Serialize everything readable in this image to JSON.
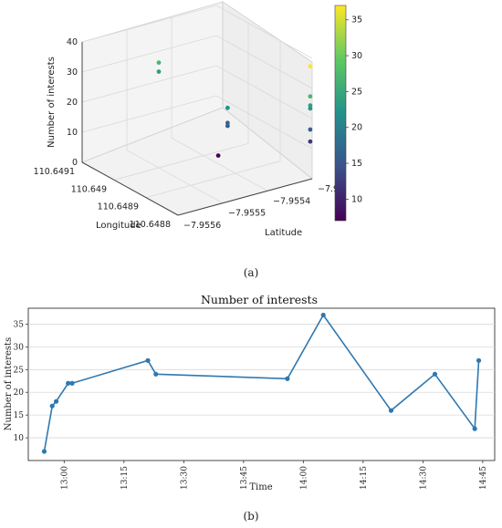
{
  "captions": {
    "a": "(a)",
    "b": "(b)"
  },
  "chart_data": [
    {
      "type": "scatter",
      "projection": "3d",
      "xlabel": "Latitude",
      "ylabel": "Longitude",
      "zlabel": "Number of interests",
      "x_ticks": [
        "−7.9556",
        "−7.9555",
        "−7.9554",
        "−7.95"
      ],
      "y_ticks": [
        "110.6488",
        "110.6489",
        "110.649",
        "110.6491"
      ],
      "z_ticks": [
        "0",
        "10",
        "20",
        "30",
        "40"
      ],
      "zlim": [
        0,
        40
      ],
      "colorbar": {
        "ticks": [
          "10",
          "15",
          "20",
          "25",
          "30",
          "35"
        ],
        "range": [
          7,
          37
        ],
        "colormap": "viridis"
      },
      "points": [
        {
          "lat_f": 0.55,
          "lon_f": 0.97,
          "z": 27
        },
        {
          "lat_f": 0.55,
          "lon_f": 0.97,
          "z": 24
        },
        {
          "lat_f": 0.62,
          "lon_f": 0.35,
          "z": 22
        },
        {
          "lat_f": 0.62,
          "lon_f": 0.35,
          "z": 17
        },
        {
          "lat_f": 0.62,
          "lon_f": 0.35,
          "z": 16
        },
        {
          "lat_f": 0.55,
          "lon_f": 0.35,
          "z": 7
        },
        {
          "lat_f": 1.0,
          "lon_f": 0.02,
          "z": 37
        },
        {
          "lat_f": 1.0,
          "lon_f": 0.02,
          "z": 27
        },
        {
          "lat_f": 1.0,
          "lon_f": 0.02,
          "z": 24
        },
        {
          "lat_f": 1.0,
          "lon_f": 0.02,
          "z": 23
        },
        {
          "lat_f": 1.0,
          "lon_f": 0.02,
          "z": 16
        },
        {
          "lat_f": 1.0,
          "lon_f": 0.02,
          "z": 12
        }
      ]
    },
    {
      "type": "line",
      "title": "Number of interests",
      "xlabel": "Time",
      "ylabel": "Number of interests",
      "x_ticks": [
        "13:00",
        "13:15",
        "13:30",
        "13:45",
        "14:00",
        "14:15",
        "14:30",
        "14:45"
      ],
      "y_ticks": [
        10,
        15,
        20,
        25,
        30,
        35
      ],
      "x_range": [
        "12:51",
        "14:48"
      ],
      "ylim": [
        5,
        38.5
      ],
      "grid": true,
      "color": "#2f78b0",
      "series": [
        {
          "x": [
            "12:55",
            "12:57",
            "12:58",
            "13:01",
            "13:02",
            "13:21",
            "13:23",
            "13:56",
            "14:05",
            "14:22",
            "14:33",
            "14:43",
            "14:44"
          ],
          "y": [
            7,
            17,
            18,
            22,
            22,
            27,
            24,
            23,
            37,
            16,
            24,
            12,
            27
          ]
        }
      ]
    }
  ]
}
